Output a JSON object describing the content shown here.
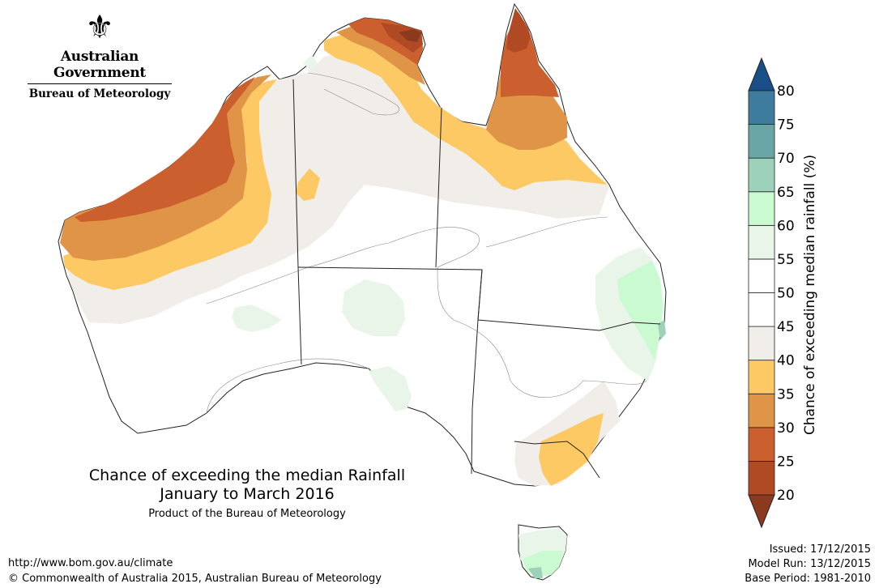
{
  "logo": {
    "gov_text": "Australian Government",
    "bureau_text": "Bureau of Meteorology"
  },
  "title": {
    "line1": "Chance of exceeding the median Rainfall",
    "line2": "January to March 2016",
    "line3": "Product of the Bureau of Meteorology"
  },
  "footer": {
    "url": "http://www.bom.gov.au/climate",
    "copyright": "© Commonwealth of Australia 2015, Australian Bureau of Meteorology",
    "issued": "Issued: 17/12/2015",
    "model_run": "Model Run: 13/12/2015",
    "base_period": "Base Period: 1981-2010"
  },
  "legend": {
    "title": "Chance of exceeding median rainfall (%)",
    "ticks": [
      "20",
      "25",
      "30",
      "35",
      "40",
      "45",
      "50",
      "55",
      "60",
      "65",
      "70",
      "75",
      "80"
    ],
    "bins": [
      {
        "range": "<20",
        "color": "#8b3a1e"
      },
      {
        "range": "20-25",
        "color": "#b04a25"
      },
      {
        "range": "25-30",
        "color": "#cc5f2e"
      },
      {
        "range": "30-35",
        "color": "#e09448"
      },
      {
        "range": "35-40",
        "color": "#fdc965"
      },
      {
        "range": "40-45",
        "color": "#f1ede8"
      },
      {
        "range": "45-50",
        "color": "#ffffff"
      },
      {
        "range": "50-55",
        "color": "#ffffff"
      },
      {
        "range": "55-60",
        "color": "#e9f5e8"
      },
      {
        "range": "60-65",
        "color": "#cafad0"
      },
      {
        "range": "65-70",
        "color": "#9dd1b9"
      },
      {
        "range": "70-75",
        "color": "#6aa6a6"
      },
      {
        "range": "75-80",
        "color": "#3e7c9e"
      },
      {
        "range": ">80",
        "color": "#1a4e86"
      }
    ]
  }
}
